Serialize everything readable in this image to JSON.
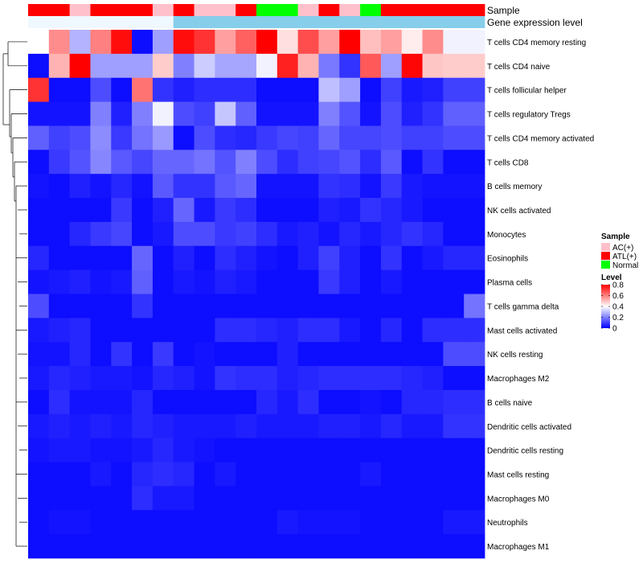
{
  "chart_data": {
    "type": "heatmap",
    "annotation_rows": [
      {
        "label": "Sample",
        "values": [
          "ATL(+)",
          "ATL(+)",
          "AC(+)",
          "ATL(+)",
          "ATL(+)",
          "ATL(+)",
          "AC(+)",
          "ATL(+)",
          "AC(+)",
          "AC(+)",
          "ATL(+)",
          "Normal",
          "Normal",
          "AC(+)",
          "ATL(+)",
          "AC(+)",
          "Normal",
          "ATL(+)",
          "ATL(+)",
          "ATL(+)",
          "ATL(+)",
          "ATL(+)"
        ]
      },
      {
        "label": "Gene expression level",
        "values": [
          "Low",
          "Low",
          "Low",
          "Low",
          "Low",
          "Low",
          "Low",
          "High",
          "High",
          "High",
          "High",
          "High",
          "High",
          "High",
          "High",
          "High",
          "High",
          "High",
          "High",
          "High",
          "High",
          "High"
        ]
      }
    ],
    "rows": [
      "T cells CD4 memory resting",
      "T cells CD4 naive",
      "T cells follicular helper",
      "T cells regulatory  Tregs",
      "T cells CD4 memory activated",
      "T cells CD8",
      "B cells memory",
      "NK cells activated",
      "Monocytes",
      "Eosinophils",
      "Plasma cells",
      "T cells gamma delta",
      "Mast cells activated",
      "NK cells resting",
      "Macrophages M2",
      "B cells naive",
      "Dendritic cells activated",
      "Dendritic cells resting",
      "Mast cells resting",
      "Macrophages M0",
      "Neutrophils",
      "Macrophages M1"
    ],
    "values": [
      [
        0.4,
        0.58,
        0.28,
        0.6,
        0.78,
        0.02,
        0.25,
        0.78,
        0.72,
        0.55,
        0.65,
        0.82,
        0.45,
        0.68,
        0.55,
        0.8,
        0.5,
        0.55,
        0.43,
        0.58,
        0.38,
        0.38
      ],
      [
        0.02,
        0.52,
        0.8,
        0.25,
        0.25,
        0.25,
        0.48,
        0.2,
        0.32,
        0.26,
        0.26,
        0.38,
        0.75,
        0.52,
        0.19,
        0.08,
        0.66,
        0.25,
        0.79,
        0.49,
        0.48,
        0.48
      ],
      [
        0.72,
        0.02,
        0.02,
        0.12,
        0.02,
        0.62,
        0.08,
        0.05,
        0.07,
        0.07,
        0.07,
        0.02,
        0.02,
        0.02,
        0.3,
        0.25,
        0.02,
        0.1,
        0.04,
        0.05,
        0.1,
        0.1
      ],
      [
        0.03,
        0.03,
        0.03,
        0.2,
        0.05,
        0.2,
        0.38,
        0.12,
        0.1,
        0.31,
        0.15,
        0.03,
        0.03,
        0.03,
        0.2,
        0.13,
        0.03,
        0.12,
        0.05,
        0.08,
        0.15,
        0.15
      ],
      [
        0.15,
        0.1,
        0.12,
        0.22,
        0.09,
        0.18,
        0.24,
        0.02,
        0.12,
        0.07,
        0.06,
        0.09,
        0.11,
        0.1,
        0.16,
        0.11,
        0.11,
        0.12,
        0.1,
        0.1,
        0.12,
        0.12
      ],
      [
        0.02,
        0.09,
        0.13,
        0.21,
        0.14,
        0.11,
        0.16,
        0.16,
        0.18,
        0.13,
        0.2,
        0.12,
        0.07,
        0.1,
        0.11,
        0.13,
        0.07,
        0.14,
        0.02,
        0.08,
        0.02,
        0.02
      ],
      [
        0.03,
        0.02,
        0.05,
        0.03,
        0.06,
        0.03,
        0.14,
        0.08,
        0.08,
        0.14,
        0.16,
        0.03,
        0.03,
        0.03,
        0.08,
        0.07,
        0.03,
        0.09,
        0.04,
        0.03,
        0.03,
        0.03
      ],
      [
        0.02,
        0.02,
        0.02,
        0.02,
        0.09,
        0.02,
        0.05,
        0.16,
        0.04,
        0.09,
        0.07,
        0.02,
        0.02,
        0.02,
        0.05,
        0.04,
        0.08,
        0.06,
        0.04,
        0.02,
        0.02,
        0.02
      ],
      [
        0.02,
        0.02,
        0.06,
        0.09,
        0.11,
        0.02,
        0.04,
        0.12,
        0.12,
        0.09,
        0.1,
        0.07,
        0.04,
        0.05,
        0.03,
        0.06,
        0.04,
        0.06,
        0.08,
        0.06,
        0.02,
        0.02
      ],
      [
        0.06,
        0.02,
        0.02,
        0.02,
        0.02,
        0.16,
        0.02,
        0.05,
        0.02,
        0.07,
        0.05,
        0.03,
        0.02,
        0.05,
        0.1,
        0.05,
        0.02,
        0.08,
        0.02,
        0.04,
        0.06,
        0.06
      ],
      [
        0.03,
        0.04,
        0.05,
        0.03,
        0.04,
        0.15,
        0.02,
        0.04,
        0.03,
        0.05,
        0.04,
        0.02,
        0.02,
        0.02,
        0.09,
        0.05,
        0.02,
        0.04,
        0.02,
        0.02,
        0.02,
        0.02
      ],
      [
        0.12,
        0.02,
        0.02,
        0.02,
        0.02,
        0.08,
        0.02,
        0.02,
        0.02,
        0.02,
        0.02,
        0.02,
        0.02,
        0.02,
        0.02,
        0.02,
        0.02,
        0.02,
        0.02,
        0.02,
        0.02,
        0.18
      ],
      [
        0.04,
        0.05,
        0.06,
        0.02,
        0.02,
        0.02,
        0.02,
        0.02,
        0.02,
        0.07,
        0.07,
        0.06,
        0.05,
        0.07,
        0.07,
        0.04,
        0.02,
        0.06,
        0.02,
        0.07,
        0.07,
        0.07
      ],
      [
        0.03,
        0.03,
        0.06,
        0.02,
        0.08,
        0.02,
        0.09,
        0.02,
        0.03,
        0.02,
        0.02,
        0.02,
        0.05,
        0.02,
        0.02,
        0.02,
        0.02,
        0.02,
        0.02,
        0.02,
        0.12,
        0.12
      ],
      [
        0.04,
        0.06,
        0.05,
        0.04,
        0.04,
        0.03,
        0.06,
        0.05,
        0.03,
        0.08,
        0.07,
        0.07,
        0.05,
        0.06,
        0.07,
        0.07,
        0.07,
        0.07,
        0.06,
        0.05,
        0.02,
        0.02
      ],
      [
        0.02,
        0.07,
        0.03,
        0.03,
        0.03,
        0.06,
        0.02,
        0.02,
        0.02,
        0.02,
        0.02,
        0.06,
        0.04,
        0.07,
        0.02,
        0.02,
        0.03,
        0.02,
        0.06,
        0.06,
        0.07,
        0.07
      ],
      [
        0.04,
        0.05,
        0.04,
        0.05,
        0.04,
        0.06,
        0.05,
        0.04,
        0.04,
        0.04,
        0.05,
        0.04,
        0.04,
        0.04,
        0.05,
        0.05,
        0.04,
        0.06,
        0.04,
        0.04,
        0.08,
        0.08
      ],
      [
        0.03,
        0.04,
        0.04,
        0.03,
        0.03,
        0.04,
        0.06,
        0.04,
        0.03,
        0.02,
        0.02,
        0.02,
        0.02,
        0.02,
        0.02,
        0.02,
        0.02,
        0.02,
        0.02,
        0.02,
        0.02,
        0.02
      ],
      [
        0.02,
        0.02,
        0.02,
        0.04,
        0.02,
        0.06,
        0.07,
        0.06,
        0.02,
        0.04,
        0.02,
        0.02,
        0.02,
        0.02,
        0.02,
        0.02,
        0.04,
        0.02,
        0.02,
        0.02,
        0.02,
        0.02
      ],
      [
        0.02,
        0.02,
        0.02,
        0.02,
        0.02,
        0.07,
        0.04,
        0.04,
        0.02,
        0.02,
        0.02,
        0.02,
        0.02,
        0.02,
        0.02,
        0.02,
        0.02,
        0.02,
        0.02,
        0.02,
        0.02,
        0.02
      ],
      [
        0.02,
        0.03,
        0.03,
        0.02,
        0.02,
        0.02,
        0.02,
        0.02,
        0.02,
        0.02,
        0.02,
        0.02,
        0.04,
        0.03,
        0.03,
        0.03,
        0.02,
        0.02,
        0.02,
        0.02,
        0.04,
        0.04
      ],
      [
        0.02,
        0.02,
        0.02,
        0.02,
        0.02,
        0.02,
        0.02,
        0.02,
        0.02,
        0.02,
        0.02,
        0.02,
        0.02,
        0.02,
        0.02,
        0.02,
        0.02,
        0.02,
        0.02,
        0.02,
        0.02,
        0.02
      ]
    ],
    "color_scale": {
      "min": 0,
      "max": 0.8,
      "low": "#0000ff",
      "mid": "#ffffff",
      "high": "#ff0000"
    },
    "legend": {
      "sample_title": "Sample",
      "sample_entries": [
        {
          "label": "AC(+)",
          "color": "#ffc0cb"
        },
        {
          "label": "ATL(+)",
          "color": "#ff0000"
        },
        {
          "label": "Normal",
          "color": "#00ff00"
        }
      ],
      "gene_colors": {
        "Low": "#f0f8ff",
        "High": "#87ceeb"
      },
      "level_title": "Level",
      "level_ticks": [
        "0.8",
        "0.6",
        "0.4",
        "0.2",
        "0"
      ],
      "level_tick_values": [
        0.8,
        0.6,
        0.4,
        0.2,
        0
      ],
      "placement": "right"
    },
    "dendrogram": "rows"
  }
}
